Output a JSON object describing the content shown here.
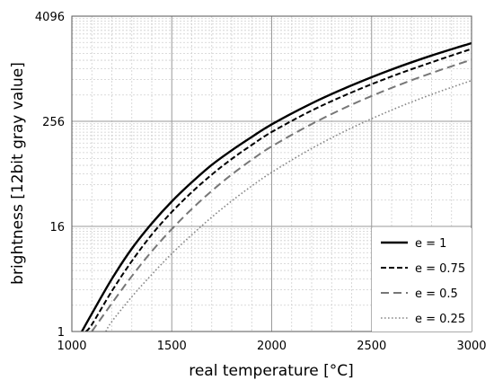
{
  "chart_data": {
    "type": "line",
    "xlabel": "real temperature [°C]",
    "ylabel": "brightness [12bit gray value]",
    "xlim": [
      1000,
      3000
    ],
    "ylim": [
      1,
      4096
    ],
    "yscale": "log2",
    "x_ticks": [
      1000,
      1500,
      2000,
      2500,
      3000
    ],
    "x_tick_labels": [
      "1000",
      "1500",
      "2000",
      "2500",
      "3000"
    ],
    "y_ticks": [
      1,
      16,
      256,
      4096
    ],
    "y_tick_labels": [
      "1",
      "16",
      "256",
      "4096"
    ],
    "grid": true,
    "legend_position": "bottom-right",
    "series": [
      {
        "name": "e = 1",
        "style": "solid",
        "color": "#000000",
        "x": [
          1050,
          1100,
          1200,
          1300,
          1400,
          1500,
          1600,
          1700,
          1800,
          1900,
          2000,
          2200,
          2400,
          2600,
          2800,
          3000
        ],
        "y": [
          1,
          1.6,
          4,
          8.9,
          17.3,
          30.9,
          51.2,
          81,
          119,
          169,
          236,
          411,
          660,
          1003,
          1450,
          2014
        ]
      },
      {
        "name": "e = 0.75",
        "style": "dashed",
        "color": "#000000",
        "x": [
          1070,
          1100,
          1200,
          1300,
          1400,
          1500,
          1600,
          1700,
          1800,
          1900,
          2000,
          2200,
          2400,
          2600,
          2800,
          3000
        ],
        "y": [
          1,
          1.2,
          2.9,
          6.4,
          12.9,
          23.4,
          39.4,
          62.7,
          94.8,
          137,
          193,
          340,
          548,
          835,
          1213,
          1728
        ]
      },
      {
        "name": "e = 0.5",
        "style": "long-dashed",
        "color": "#777777",
        "x": [
          1100,
          1200,
          1300,
          1400,
          1500,
          1600,
          1700,
          1800,
          1900,
          2000,
          2200,
          2400,
          2600,
          2800,
          3000
        ],
        "y": [
          1,
          2.1,
          4.3,
          8.3,
          14.9,
          25.3,
          40.8,
          62.9,
          92.8,
          132,
          238,
          397,
          618,
          914,
          1300
        ]
      },
      {
        "name": "e = 0.25",
        "style": "dotted",
        "color": "#888888",
        "x": [
          1170,
          1200,
          1300,
          1400,
          1500,
          1600,
          1700,
          1800,
          1900,
          2000,
          2200,
          2400,
          2600,
          2800,
          3000
        ],
        "y": [
          1,
          1.3,
          2.5,
          4.5,
          7.8,
          12.8,
          20.4,
          31.3,
          46.4,
          66.6,
          125,
          215,
          344,
          520,
          750
        ]
      }
    ]
  }
}
